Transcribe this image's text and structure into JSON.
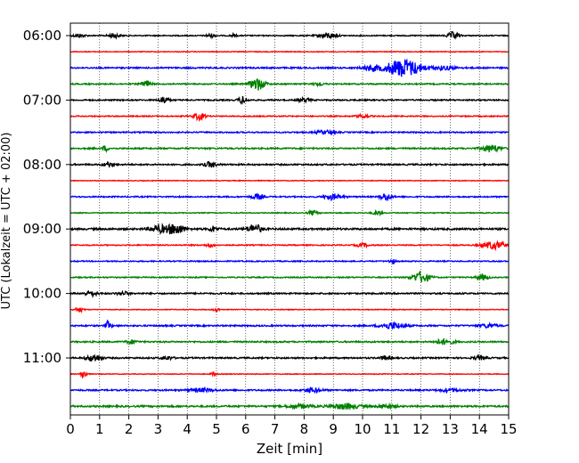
{
  "chart_data": {
    "type": "line",
    "title": "",
    "xlabel": "Zeit  [min]",
    "ylabel": "UTC (Lokalzeit = UTC + 02:00)",
    "xlim": [
      0,
      15
    ],
    "x_ticks": [
      "0",
      "1",
      "2",
      "3",
      "4",
      "5",
      "6",
      "7",
      "8",
      "9",
      "10",
      "11",
      "12",
      "13",
      "14",
      "15"
    ],
    "y_ticks": [
      "06:00",
      "07:00",
      "08:00",
      "09:00",
      "10:00",
      "11:00"
    ],
    "grid": "vertical dotted at each minute",
    "trace_interval_minutes": 15,
    "start_time": "06:00",
    "colors": [
      "#000000",
      "#ff0000",
      "#0000ff",
      "#008000"
    ],
    "series": [
      {
        "time": "06:00",
        "color": "#000000",
        "base": 0.6,
        "events": [
          {
            "t": 0.3,
            "a": 2,
            "w": 0.2
          },
          {
            "t": 1.5,
            "a": 2.5,
            "w": 0.2
          },
          {
            "t": 4.8,
            "a": 2,
            "w": 0.15
          },
          {
            "t": 5.6,
            "a": 1.5,
            "w": 0.1
          },
          {
            "t": 8.8,
            "a": 3,
            "w": 0.3
          },
          {
            "t": 13.1,
            "a": 4,
            "w": 0.2
          }
        ]
      },
      {
        "time": "06:15",
        "color": "#ff0000",
        "base": 0.4,
        "events": []
      },
      {
        "time": "06:30",
        "color": "#0000ff",
        "base": 0.8,
        "events": [
          {
            "t": 10.3,
            "a": 3,
            "w": 0.3
          },
          {
            "t": 11.4,
            "a": 10,
            "w": 0.6
          },
          {
            "t": 12.8,
            "a": 2,
            "w": 0.4
          }
        ]
      },
      {
        "time": "06:45",
        "color": "#008000",
        "base": 0.7,
        "events": [
          {
            "t": 2.6,
            "a": 4,
            "w": 0.15
          },
          {
            "t": 6.4,
            "a": 7,
            "w": 0.25
          },
          {
            "t": 8.5,
            "a": 1.5,
            "w": 0.2
          }
        ]
      },
      {
        "time": "07:00",
        "color": "#000000",
        "base": 0.7,
        "events": [
          {
            "t": 3.2,
            "a": 4,
            "w": 0.15
          },
          {
            "t": 5.9,
            "a": 4,
            "w": 0.15
          },
          {
            "t": 8.0,
            "a": 2,
            "w": 0.2
          }
        ]
      },
      {
        "time": "07:15",
        "color": "#ff0000",
        "base": 0.6,
        "events": [
          {
            "t": 4.4,
            "a": 4,
            "w": 0.2
          },
          {
            "t": 10.0,
            "a": 2,
            "w": 0.2
          }
        ]
      },
      {
        "time": "07:30",
        "color": "#0000ff",
        "base": 0.7,
        "events": [
          {
            "t": 8.7,
            "a": 2,
            "w": 0.3
          }
        ]
      },
      {
        "time": "07:45",
        "color": "#008000",
        "base": 0.8,
        "events": [
          {
            "t": 1.2,
            "a": 3,
            "w": 0.1
          },
          {
            "t": 14.4,
            "a": 4,
            "w": 0.3
          }
        ]
      },
      {
        "time": "08:00",
        "color": "#000000",
        "base": 0.8,
        "events": [
          {
            "t": 1.3,
            "a": 2,
            "w": 0.2
          },
          {
            "t": 4.8,
            "a": 3,
            "w": 0.2
          }
        ]
      },
      {
        "time": "08:15",
        "color": "#ff0000",
        "base": 0.4,
        "events": []
      },
      {
        "time": "08:30",
        "color": "#0000ff",
        "base": 0.7,
        "events": [
          {
            "t": 6.4,
            "a": 3,
            "w": 0.2
          },
          {
            "t": 9.0,
            "a": 3,
            "w": 0.3
          },
          {
            "t": 10.8,
            "a": 4,
            "w": 0.2
          }
        ]
      },
      {
        "time": "08:45",
        "color": "#008000",
        "base": 0.5,
        "events": [
          {
            "t": 8.3,
            "a": 2.5,
            "w": 0.15
          },
          {
            "t": 10.5,
            "a": 2.5,
            "w": 0.15
          }
        ]
      },
      {
        "time": "09:00",
        "color": "#000000",
        "base": 1.0,
        "events": [
          {
            "t": 3.0,
            "a": 4,
            "w": 0.3
          },
          {
            "t": 3.6,
            "a": 6,
            "w": 0.3
          },
          {
            "t": 4.9,
            "a": 3,
            "w": 0.15
          },
          {
            "t": 6.3,
            "a": 5,
            "w": 0.25
          }
        ]
      },
      {
        "time": "09:15",
        "color": "#ff0000",
        "base": 0.6,
        "events": [
          {
            "t": 4.8,
            "a": 2,
            "w": 0.15
          },
          {
            "t": 10.0,
            "a": 2,
            "w": 0.2
          },
          {
            "t": 14.5,
            "a": 4,
            "w": 0.4
          }
        ]
      },
      {
        "time": "09:30",
        "color": "#0000ff",
        "base": 0.6,
        "events": [
          {
            "t": 11.0,
            "a": 3,
            "w": 0.1
          }
        ]
      },
      {
        "time": "09:45",
        "color": "#008000",
        "base": 0.6,
        "events": [
          {
            "t": 12.0,
            "a": 6,
            "w": 0.3
          },
          {
            "t": 14.1,
            "a": 3,
            "w": 0.2
          }
        ]
      },
      {
        "time": "10:00",
        "color": "#000000",
        "base": 0.8,
        "events": [
          {
            "t": 0.7,
            "a": 3,
            "w": 0.2
          },
          {
            "t": 1.8,
            "a": 2,
            "w": 0.2
          }
        ]
      },
      {
        "time": "10:15",
        "color": "#ff0000",
        "base": 0.4,
        "events": [
          {
            "t": 0.3,
            "a": 2.5,
            "w": 0.15
          },
          {
            "t": 5.0,
            "a": 2,
            "w": 0.1
          }
        ]
      },
      {
        "time": "10:30",
        "color": "#0000ff",
        "base": 0.8,
        "events": [
          {
            "t": 1.3,
            "a": 5,
            "w": 0.1
          },
          {
            "t": 11.0,
            "a": 3.5,
            "w": 0.4
          },
          {
            "t": 14.3,
            "a": 2,
            "w": 0.3
          }
        ]
      },
      {
        "time": "10:45",
        "color": "#008000",
        "base": 0.8,
        "events": [
          {
            "t": 2.1,
            "a": 2,
            "w": 0.2
          },
          {
            "t": 12.8,
            "a": 3,
            "w": 0.3
          }
        ]
      },
      {
        "time": "11:00",
        "color": "#000000",
        "base": 0.8,
        "events": [
          {
            "t": 0.8,
            "a": 4,
            "w": 0.25
          },
          {
            "t": 3.3,
            "a": 2,
            "w": 0.2
          },
          {
            "t": 10.8,
            "a": 2,
            "w": 0.2
          },
          {
            "t": 14.0,
            "a": 2,
            "w": 0.2
          }
        ]
      },
      {
        "time": "11:15",
        "color": "#ff0000",
        "base": 0.4,
        "events": [
          {
            "t": 0.45,
            "a": 5,
            "w": 0.1
          },
          {
            "t": 4.9,
            "a": 2,
            "w": 0.1
          }
        ]
      },
      {
        "time": "11:30",
        "color": "#0000ff",
        "base": 0.8,
        "events": [
          {
            "t": 4.5,
            "a": 2,
            "w": 0.4
          },
          {
            "t": 8.3,
            "a": 2.5,
            "w": 0.3
          },
          {
            "t": 13.0,
            "a": 1.5,
            "w": 0.4
          }
        ]
      },
      {
        "time": "11:45",
        "color": "#008000",
        "base": 0.9,
        "events": [
          {
            "t": 7.8,
            "a": 2,
            "w": 0.4
          },
          {
            "t": 9.4,
            "a": 3,
            "w": 0.5
          },
          {
            "t": 10.8,
            "a": 2,
            "w": 0.3
          }
        ]
      }
    ]
  }
}
